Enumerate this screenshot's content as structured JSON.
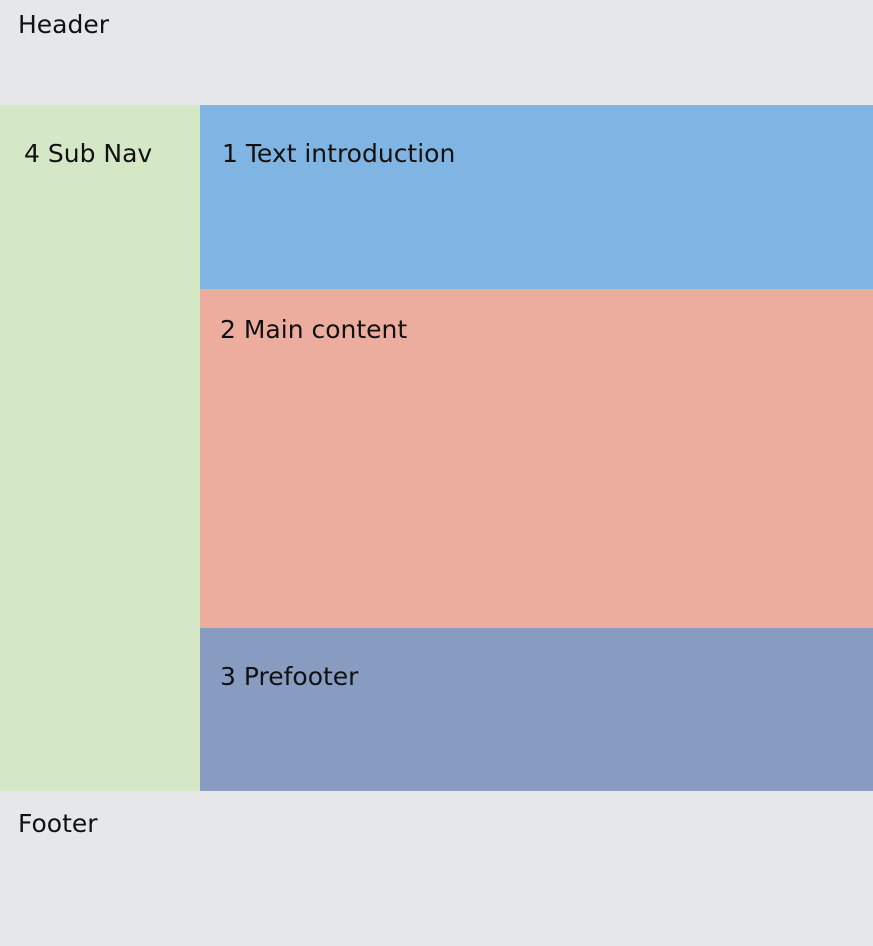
{
  "regions": {
    "header": {
      "label": "Header",
      "color": "#E6E7E9"
    },
    "subnav": {
      "label": "4 Sub Nav",
      "color": "#D4E8C6"
    },
    "intro": {
      "label": "1 Text introduction",
      "color": "#80B4E3"
    },
    "main": {
      "label": "2 Main content",
      "color": "#ECAD9F"
    },
    "prefooter": {
      "label": "3 Prefooter",
      "color": "#889CC2"
    },
    "footer": {
      "label": "Footer",
      "color": "#E6E7E9"
    }
  }
}
